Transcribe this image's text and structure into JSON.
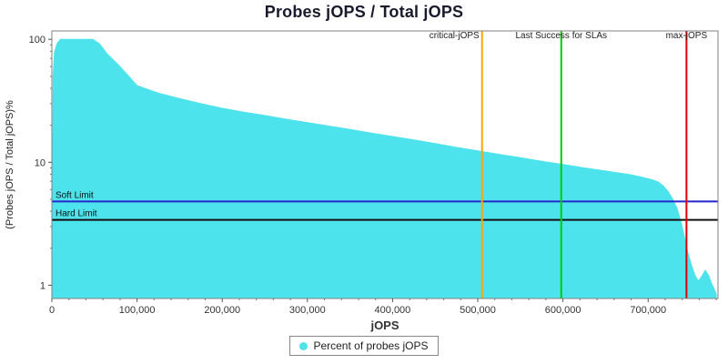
{
  "chart_data": {
    "type": "area",
    "title": "Probes jOPS / Total jOPS",
    "xlabel": "jOPS",
    "ylabel": "(Probes jOPS / Total jOPS)%",
    "x_scale": "linear",
    "y_scale": "log",
    "xlim": [
      0,
      782000
    ],
    "ylim": [
      0.78,
      117
    ],
    "x_ticks": [
      0,
      100000,
      200000,
      300000,
      400000,
      500000,
      600000,
      700000
    ],
    "y_ticks": [
      1,
      10,
      100
    ],
    "grid": false,
    "series": [
      {
        "name": "Percent of probes jOPS",
        "color": "#4de3ec",
        "points": [
          [
            0,
            0.8
          ],
          [
            1500,
            50
          ],
          [
            3000,
            78
          ],
          [
            6000,
            92
          ],
          [
            10000,
            100
          ],
          [
            48000,
            100
          ],
          [
            56000,
            92
          ],
          [
            65000,
            76
          ],
          [
            80000,
            60
          ],
          [
            100000,
            42
          ],
          [
            125000,
            36.5
          ],
          [
            150000,
            33
          ],
          [
            175000,
            30
          ],
          [
            200000,
            27.5
          ],
          [
            225000,
            25.6
          ],
          [
            250000,
            24
          ],
          [
            275000,
            22.4
          ],
          [
            300000,
            21
          ],
          [
            325000,
            19.7
          ],
          [
            350000,
            18.5
          ],
          [
            375000,
            17.3
          ],
          [
            400000,
            16.2
          ],
          [
            425000,
            15.2
          ],
          [
            450000,
            14.2
          ],
          [
            475000,
            13.2
          ],
          [
            500000,
            12.4
          ],
          [
            525000,
            11.6
          ],
          [
            550000,
            10.9
          ],
          [
            575000,
            10.2
          ],
          [
            600000,
            9.6
          ],
          [
            625000,
            9.0
          ],
          [
            650000,
            8.5
          ],
          [
            665000,
            8.2
          ],
          [
            680000,
            7.9
          ],
          [
            695000,
            7.5
          ],
          [
            705000,
            7.2
          ],
          [
            712000,
            6.9
          ],
          [
            718000,
            6.4
          ],
          [
            724000,
            5.7
          ],
          [
            729000,
            5.0
          ],
          [
            734000,
            4.2
          ],
          [
            739000,
            3.2
          ],
          [
            743000,
            2.4
          ],
          [
            747000,
            1.8
          ],
          [
            751000,
            1.45
          ],
          [
            755000,
            1.2
          ],
          [
            759000,
            1.08
          ],
          [
            763000,
            1.18
          ],
          [
            767000,
            1.32
          ],
          [
            771000,
            1.2
          ],
          [
            774000,
            1.05
          ],
          [
            777000,
            0.95
          ],
          [
            780000,
            0.85
          ]
        ]
      }
    ],
    "h_lines": [
      {
        "label": "Soft Limit",
        "value": 4.8,
        "color": "#2626cc"
      },
      {
        "label": "Hard Limit",
        "value": 3.4,
        "color": "#111111"
      }
    ],
    "v_lines": [
      {
        "label": "critical-jOPS",
        "x": 505000,
        "color": "#ffa500",
        "anchor": "end"
      },
      {
        "label": "Last Success for SLAs",
        "x": 598000,
        "color": "#00cc00",
        "anchor": "middle"
      },
      {
        "label": "max-jOPS",
        "x": 745000,
        "color": "#dd0000",
        "anchor": "middle"
      }
    ],
    "legend": {
      "label": "Percent of probes jOPS",
      "swatch_color": "#4de3ec",
      "position": "bottom"
    },
    "axis_color": "#808080",
    "tick_label_color": "#333333",
    "annotation_color": "#222222"
  }
}
